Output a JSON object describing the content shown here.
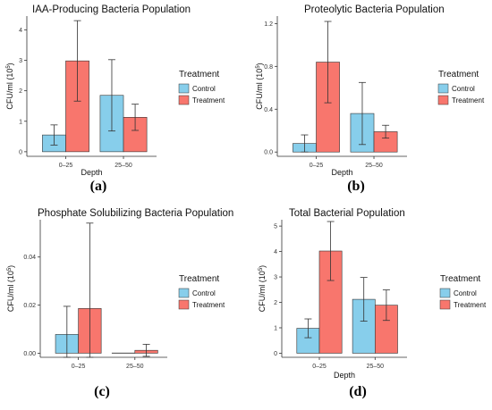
{
  "chart_data": [
    {
      "type": "bar",
      "title": "IAA-Producing Bacteria Population",
      "xlabel": "Depth",
      "ylabel": "CFU/ml (10",
      "ylabel_sup": "5",
      "ylabel_close": ")",
      "categories": [
        "0–25",
        "25–50"
      ],
      "series": [
        {
          "name": "Control",
          "values": [
            0.55,
            1.85
          ],
          "errors": [
            0.33,
            1.17
          ]
        },
        {
          "name": "Treatment",
          "values": [
            2.98,
            1.13
          ],
          "errors": [
            1.32,
            0.43
          ]
        }
      ],
      "ylim": [
        -0.15,
        4.45
      ],
      "yticks": [
        "0",
        "1",
        "2",
        "3",
        "4"
      ],
      "yticks_values": [
        0,
        1,
        2,
        3,
        4
      ],
      "legend": {
        "title": "Treatment",
        "entries": [
          "Control",
          "Treatment"
        ],
        "position": "right"
      },
      "panel_label": "(a)"
    },
    {
      "type": "bar",
      "title": "Proteolytic Bacteria Population",
      "xlabel": "Depth",
      "ylabel": "CFU/ml (10",
      "ylabel_sup": "5",
      "ylabel_close": ")",
      "categories": [
        "0–25",
        "25–50"
      ],
      "series": [
        {
          "name": "Control",
          "values": [
            0.08,
            0.36
          ],
          "errors": [
            0.08,
            0.29
          ]
        },
        {
          "name": "Treatment",
          "values": [
            0.84,
            0.19
          ],
          "errors": [
            0.38,
            0.06
          ]
        }
      ],
      "ylim": [
        -0.04,
        1.27
      ],
      "yticks": [
        "0.0",
        "0.4",
        "0.8",
        "1.2"
      ],
      "yticks_values": [
        0,
        0.4,
        0.8,
        1.2
      ],
      "legend": {
        "title": "Treatment",
        "entries": [
          "Control",
          "Treatment"
        ],
        "position": "right"
      },
      "panel_label": "(b)"
    },
    {
      "type": "bar",
      "title": "Phosphate Solubilizing Bacteria Population",
      "xlabel": "",
      "ylabel": "CFU/ml (10",
      "ylabel_sup": "5",
      "ylabel_close": ")",
      "categories": [
        "0–25",
        "25–50"
      ],
      "series": [
        {
          "name": "Control",
          "values": [
            0.0078,
            0.0001
          ],
          "errors": [
            0.0117,
            0
          ]
        },
        {
          "name": "Treatment",
          "values": [
            0.0186,
            0.0012
          ],
          "errors": [
            0.0355,
            0.0025
          ]
        }
      ],
      "ylim": [
        -0.0017,
        0.0555
      ],
      "yticks": [
        "0.00",
        "0.02",
        "0.04"
      ],
      "yticks_values": [
        0,
        0.02,
        0.04
      ],
      "legend": {
        "title": "Treatment",
        "entries": [
          "Control",
          "Treatment"
        ],
        "position": "right"
      },
      "panel_label": "(c)"
    },
    {
      "type": "bar",
      "title": "Total Bacterial Population",
      "xlabel": "Depth",
      "ylabel": "CFU/ml (10",
      "ylabel_sup": "5",
      "ylabel_close": ")",
      "categories": [
        "0–25",
        "25–50"
      ],
      "series": [
        {
          "name": "Control",
          "values": [
            0.98,
            2.12
          ],
          "errors": [
            0.37,
            0.86
          ]
        },
        {
          "name": "Treatment",
          "values": [
            4.02,
            1.89
          ],
          "errors": [
            1.16,
            0.6
          ]
        }
      ],
      "ylim": [
        -0.16,
        5.25
      ],
      "yticks": [
        "0",
        "1",
        "2",
        "3",
        "4",
        "5"
      ],
      "yticks_values": [
        0,
        1,
        2,
        3,
        4,
        5
      ],
      "legend": {
        "title": "Treatment",
        "entries": [
          "Control",
          "Treatment"
        ],
        "position": "right"
      },
      "panel_label": "(d)"
    }
  ],
  "colors": {
    "control": "#87ceeb",
    "treatment": "#f8766d",
    "axis": "#333333",
    "errorbar": "#333333"
  }
}
